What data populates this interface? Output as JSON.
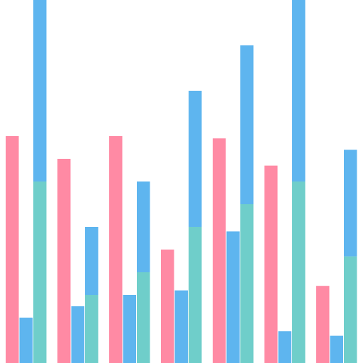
{
  "chart_data": {
    "type": "bar",
    "title": "",
    "xlabel": "",
    "ylabel": "",
    "categories": [
      "",
      "",
      "",
      "",
      "",
      "",
      ""
    ],
    "ylim": [
      0,
      80
    ],
    "grid": false,
    "legend": "none",
    "groups": [
      {
        "single": 50,
        "small": 10,
        "stack_base": 40,
        "stack_top": 40
      },
      {
        "single": 45,
        "small": 12.5,
        "stack_base": 15,
        "stack_top": 15
      },
      {
        "single": 50,
        "small": 15,
        "stack_base": 20,
        "stack_top": 20
      },
      {
        "single": 25,
        "small": 16,
        "stack_base": 30,
        "stack_top": 30
      },
      {
        "single": 49.5,
        "small": 29,
        "stack_base": 35,
        "stack_top": 35
      },
      {
        "single": 43.5,
        "small": 7,
        "stack_base": 40,
        "stack_top": 40
      },
      {
        "single": 17,
        "small": 6,
        "stack_base": 23.5,
        "stack_top": 23.5
      }
    ],
    "colors": {
      "single": "#ff8aa4",
      "small": "#5eb5ef",
      "stack_base": "#6fceca",
      "stack_top": "#5eb5ef"
    }
  }
}
